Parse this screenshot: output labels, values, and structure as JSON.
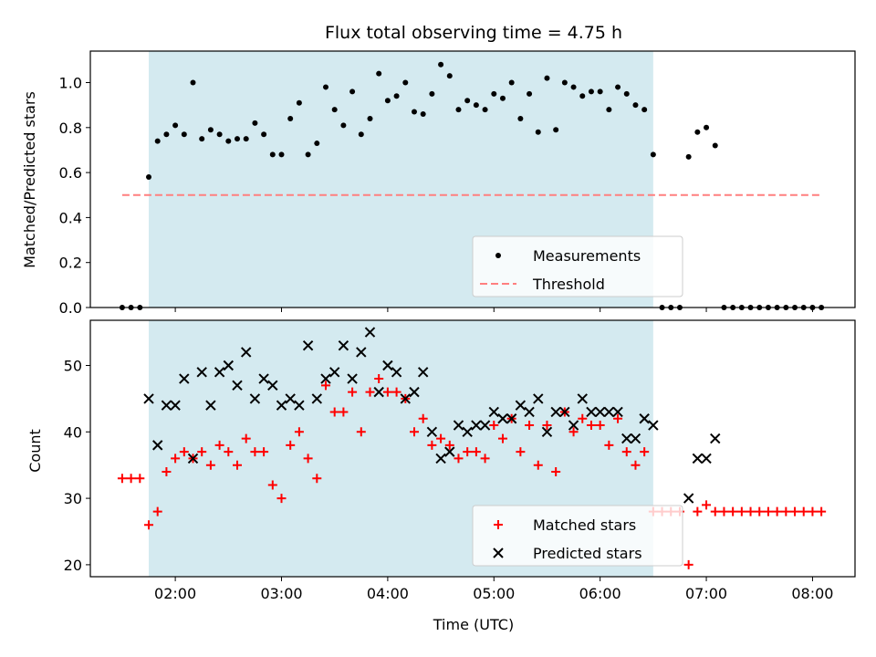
{
  "chart_data": [
    {
      "type": "scatter",
      "title": "Flux total observing time = 4.75 h",
      "ylabel": "Matched/Predicted stars",
      "xlabel": "",
      "x_range_hours": [
        1.2,
        8.4
      ],
      "ylim": [
        0,
        1.14
      ],
      "yticks": [
        "0.0",
        "0.2",
        "0.4",
        "0.6",
        "0.8",
        "1.0"
      ],
      "xtick_values": [
        2,
        3,
        4,
        5,
        6,
        7,
        8
      ],
      "shaded_span": [
        "01:45",
        "06:30"
      ],
      "shade_color": "#d4eaf0",
      "legend_position": "lower-center",
      "series": [
        {
          "name": "Measurements",
          "style": "dots",
          "color": "#000000",
          "points": [
            [
              "01:30",
              0
            ],
            [
              "01:35",
              0
            ],
            [
              "01:40",
              0
            ],
            [
              "01:45",
              0.58
            ],
            [
              "01:50",
              0.74
            ],
            [
              "01:55",
              0.77
            ],
            [
              "02:00",
              0.81
            ],
            [
              "02:05",
              0.77
            ],
            [
              "02:10",
              1.0
            ],
            [
              "02:15",
              0.75
            ],
            [
              "02:20",
              0.79
            ],
            [
              "02:25",
              0.77
            ],
            [
              "02:30",
              0.74
            ],
            [
              "02:35",
              0.75
            ],
            [
              "02:40",
              0.75
            ],
            [
              "02:45",
              0.82
            ],
            [
              "02:50",
              0.77
            ],
            [
              "02:55",
              0.68
            ],
            [
              "03:00",
              0.68
            ],
            [
              "03:05",
              0.84
            ],
            [
              "03:10",
              0.91
            ],
            [
              "03:15",
              0.68
            ],
            [
              "03:20",
              0.73
            ],
            [
              "03:25",
              0.98
            ],
            [
              "03:30",
              0.88
            ],
            [
              "03:35",
              0.81
            ],
            [
              "03:40",
              0.96
            ],
            [
              "03:45",
              0.77
            ],
            [
              "03:50",
              0.84
            ],
            [
              "03:55",
              1.04
            ],
            [
              "04:00",
              0.92
            ],
            [
              "04:05",
              0.94
            ],
            [
              "04:10",
              1.0
            ],
            [
              "04:15",
              0.87
            ],
            [
              "04:20",
              0.86
            ],
            [
              "04:25",
              0.95
            ],
            [
              "04:30",
              1.08
            ],
            [
              "04:35",
              1.03
            ],
            [
              "04:40",
              0.88
            ],
            [
              "04:45",
              0.92
            ],
            [
              "04:50",
              0.9
            ],
            [
              "04:55",
              0.88
            ],
            [
              "05:00",
              0.95
            ],
            [
              "05:05",
              0.93
            ],
            [
              "05:10",
              1.0
            ],
            [
              "05:15",
              0.84
            ],
            [
              "05:20",
              0.95
            ],
            [
              "05:25",
              0.78
            ],
            [
              "05:30",
              1.02
            ],
            [
              "05:35",
              0.79
            ],
            [
              "05:40",
              1.0
            ],
            [
              "05:45",
              0.98
            ],
            [
              "05:50",
              0.94
            ],
            [
              "05:55",
              0.96
            ],
            [
              "06:00",
              0.96
            ],
            [
              "06:05",
              0.88
            ],
            [
              "06:10",
              0.98
            ],
            [
              "06:15",
              0.95
            ],
            [
              "06:20",
              0.9
            ],
            [
              "06:25",
              0.88
            ],
            [
              "06:30",
              0.68
            ],
            [
              "06:35",
              0
            ],
            [
              "06:40",
              0
            ],
            [
              "06:45",
              0
            ],
            [
              "06:50",
              0.67
            ],
            [
              "06:55",
              0.78
            ],
            [
              "07:00",
              0.8
            ],
            [
              "07:05",
              0.72
            ],
            [
              "07:10",
              0
            ],
            [
              "07:15",
              0
            ],
            [
              "07:20",
              0
            ],
            [
              "07:25",
              0
            ],
            [
              "07:30",
              0
            ],
            [
              "07:35",
              0
            ],
            [
              "07:40",
              0
            ],
            [
              "07:45",
              0
            ],
            [
              "07:50",
              0
            ],
            [
              "07:55",
              0
            ],
            [
              "08:00",
              0
            ],
            [
              "08:05",
              0
            ]
          ]
        },
        {
          "name": "Threshold",
          "style": "dashed-line",
          "color": "#ff7f7f",
          "points": [
            [
              "01:30",
              0.5
            ],
            [
              "08:05",
              0.5
            ]
          ]
        }
      ]
    },
    {
      "type": "scatter",
      "title": "",
      "ylabel": "Count",
      "xlabel": "Time (UTC)",
      "x_range_hours": [
        1.2,
        8.4
      ],
      "ylim": [
        18.2,
        56.8
      ],
      "yticks": [
        "20",
        "30",
        "40",
        "50"
      ],
      "xticks": [
        "02:00",
        "03:00",
        "04:00",
        "05:00",
        "06:00",
        "07:00",
        "08:00"
      ],
      "xtick_values": [
        2,
        3,
        4,
        5,
        6,
        7,
        8
      ],
      "shaded_span": [
        "01:45",
        "06:30"
      ],
      "shade_color": "#d4eaf0",
      "legend_position": "lower-center",
      "series": [
        {
          "name": "Matched stars",
          "marker": "+",
          "color": "#ff0000",
          "points": [
            [
              "01:30",
              33
            ],
            [
              "01:35",
              33
            ],
            [
              "01:40",
              33
            ],
            [
              "01:45",
              26
            ],
            [
              "01:50",
              28
            ],
            [
              "01:55",
              34
            ],
            [
              "02:00",
              36
            ],
            [
              "02:05",
              37
            ],
            [
              "02:10",
              36
            ],
            [
              "02:15",
              37
            ],
            [
              "02:20",
              35
            ],
            [
              "02:25",
              38
            ],
            [
              "02:30",
              37
            ],
            [
              "02:35",
              35
            ],
            [
              "02:40",
              39
            ],
            [
              "02:45",
              37
            ],
            [
              "02:50",
              37
            ],
            [
              "02:55",
              32
            ],
            [
              "03:00",
              30
            ],
            [
              "03:05",
              38
            ],
            [
              "03:10",
              40
            ],
            [
              "03:15",
              36
            ],
            [
              "03:20",
              33
            ],
            [
              "03:25",
              47
            ],
            [
              "03:30",
              43
            ],
            [
              "03:35",
              43
            ],
            [
              "03:40",
              46
            ],
            [
              "03:45",
              40
            ],
            [
              "03:50",
              46
            ],
            [
              "03:55",
              48
            ],
            [
              "04:00",
              46
            ],
            [
              "04:05",
              46
            ],
            [
              "04:10",
              45
            ],
            [
              "04:15",
              40
            ],
            [
              "04:20",
              42
            ],
            [
              "04:25",
              38
            ],
            [
              "04:30",
              39
            ],
            [
              "04:35",
              38
            ],
            [
              "04:40",
              36
            ],
            [
              "04:45",
              37
            ],
            [
              "04:50",
              37
            ],
            [
              "04:55",
              36
            ],
            [
              "05:00",
              41
            ],
            [
              "05:05",
              39
            ],
            [
              "05:10",
              42
            ],
            [
              "05:15",
              37
            ],
            [
              "05:20",
              41
            ],
            [
              "05:25",
              35
            ],
            [
              "05:30",
              41
            ],
            [
              "05:35",
              34
            ],
            [
              "05:40",
              43
            ],
            [
              "05:45",
              40
            ],
            [
              "05:50",
              42
            ],
            [
              "05:55",
              41
            ],
            [
              "06:00",
              41
            ],
            [
              "06:05",
              38
            ],
            [
              "06:10",
              42
            ],
            [
              "06:15",
              37
            ],
            [
              "06:20",
              35
            ],
            [
              "06:25",
              37
            ],
            [
              "06:30",
              28
            ],
            [
              "06:35",
              28
            ],
            [
              "06:40",
              28
            ],
            [
              "06:45",
              28
            ],
            [
              "06:50",
              20
            ],
            [
              "06:55",
              28
            ],
            [
              "07:00",
              29
            ],
            [
              "07:05",
              28
            ],
            [
              "07:10",
              28
            ],
            [
              "07:15",
              28
            ],
            [
              "07:20",
              28
            ],
            [
              "07:25",
              28
            ],
            [
              "07:30",
              28
            ],
            [
              "07:35",
              28
            ],
            [
              "07:40",
              28
            ],
            [
              "07:45",
              28
            ],
            [
              "07:50",
              28
            ],
            [
              "07:55",
              28
            ],
            [
              "08:00",
              28
            ],
            [
              "08:05",
              28
            ]
          ]
        },
        {
          "name": "Predicted stars",
          "marker": "x",
          "color": "#000000",
          "points": [
            [
              "01:45",
              45
            ],
            [
              "01:50",
              38
            ],
            [
              "01:55",
              44
            ],
            [
              "02:00",
              44
            ],
            [
              "02:05",
              48
            ],
            [
              "02:10",
              36
            ],
            [
              "02:15",
              49
            ],
            [
              "02:20",
              44
            ],
            [
              "02:25",
              49
            ],
            [
              "02:30",
              50
            ],
            [
              "02:35",
              47
            ],
            [
              "02:40",
              52
            ],
            [
              "02:45",
              45
            ],
            [
              "02:50",
              48
            ],
            [
              "02:55",
              47
            ],
            [
              "03:00",
              44
            ],
            [
              "03:05",
              45
            ],
            [
              "03:10",
              44
            ],
            [
              "03:15",
              53
            ],
            [
              "03:20",
              45
            ],
            [
              "03:25",
              48
            ],
            [
              "03:30",
              49
            ],
            [
              "03:35",
              53
            ],
            [
              "03:40",
              48
            ],
            [
              "03:45",
              52
            ],
            [
              "03:50",
              55
            ],
            [
              "03:55",
              46
            ],
            [
              "04:00",
              50
            ],
            [
              "04:05",
              49
            ],
            [
              "04:10",
              45
            ],
            [
              "04:15",
              46
            ],
            [
              "04:20",
              49
            ],
            [
              "04:25",
              40
            ],
            [
              "04:30",
              36
            ],
            [
              "04:35",
              37
            ],
            [
              "04:40",
              41
            ],
            [
              "04:45",
              40
            ],
            [
              "04:50",
              41
            ],
            [
              "04:55",
              41
            ],
            [
              "05:00",
              43
            ],
            [
              "05:05",
              42
            ],
            [
              "05:10",
              42
            ],
            [
              "05:15",
              44
            ],
            [
              "05:20",
              43
            ],
            [
              "05:25",
              45
            ],
            [
              "05:30",
              40
            ],
            [
              "05:35",
              43
            ],
            [
              "05:40",
              43
            ],
            [
              "05:45",
              41
            ],
            [
              "05:50",
              45
            ],
            [
              "05:55",
              43
            ],
            [
              "06:00",
              43
            ],
            [
              "06:05",
              43
            ],
            [
              "06:10",
              43
            ],
            [
              "06:15",
              39
            ],
            [
              "06:20",
              39
            ],
            [
              "06:25",
              42
            ],
            [
              "06:30",
              41
            ],
            [
              "06:50",
              30
            ],
            [
              "06:55",
              36
            ],
            [
              "07:00",
              36
            ],
            [
              "07:05",
              39
            ]
          ]
        }
      ]
    }
  ]
}
